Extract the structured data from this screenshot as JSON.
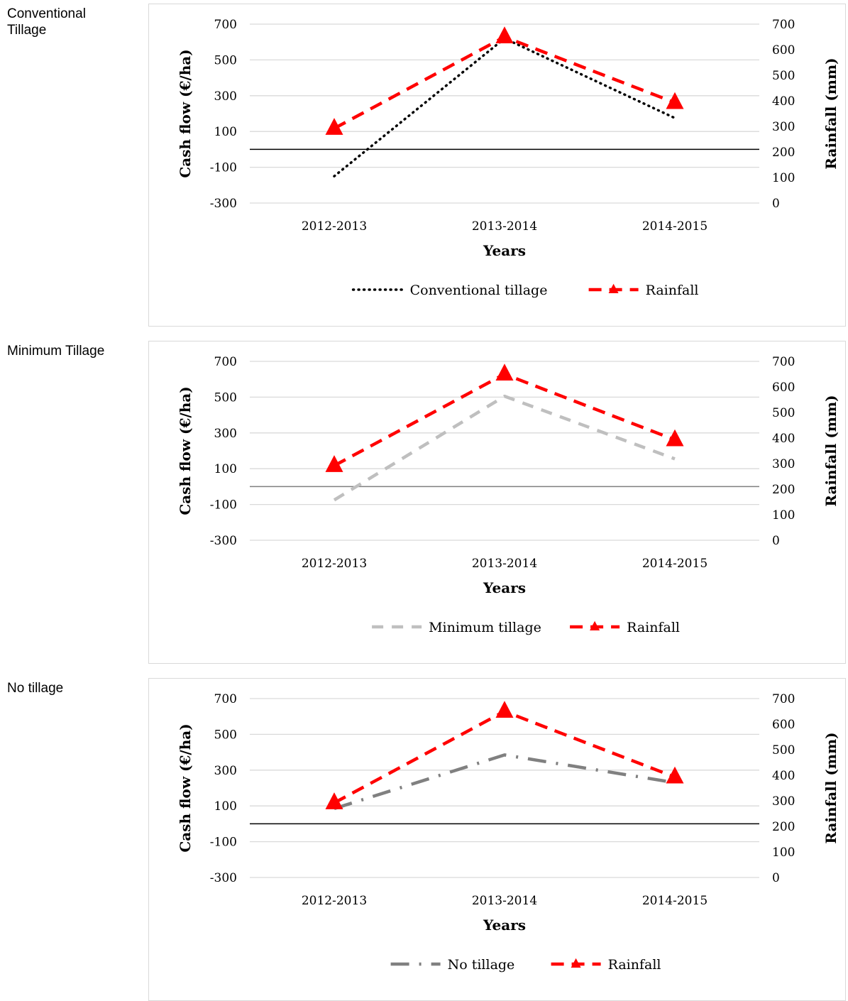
{
  "chart_data": [
    {
      "type": "line",
      "panel_label": "Conventional\nTillage",
      "categories": [
        "2012-2013",
        "2013-2014",
        "2014-2015"
      ],
      "xlabel": "Years",
      "ylabel": "Cash flow (€/ha)",
      "y2label": "Rainfall (mm)",
      "ylim": [
        -300,
        700
      ],
      "y2lim": [
        0,
        700
      ],
      "yticks": [
        "700",
        "500",
        "300",
        "100",
        "-100",
        "-300"
      ],
      "y2ticks": [
        "700",
        "600",
        "500",
        "400",
        "300",
        "200",
        "100",
        "0"
      ],
      "grid": true,
      "legend_position": "bottom",
      "series": [
        {
          "name": "Conventional tillage",
          "axis": "left",
          "style": "dotted",
          "color": "#000000",
          "values": [
            -150,
            620,
            175
          ]
        },
        {
          "name": "Rainfall",
          "axis": "right",
          "style": "dashed-triangle",
          "color": "#ff0000",
          "values": [
            292,
            650,
            393
          ]
        }
      ]
    },
    {
      "type": "line",
      "panel_label": "Minimum Tillage",
      "categories": [
        "2012-2013",
        "2013-2014",
        "2014-2015"
      ],
      "xlabel": "Years",
      "ylabel": "Cash flow (€/ha)",
      "y2label": "Rainfall (mm)",
      "ylim": [
        -300,
        700
      ],
      "y2lim": [
        0,
        700
      ],
      "yticks": [
        "700",
        "500",
        "300",
        "100",
        "-100",
        "-300"
      ],
      "y2ticks": [
        "700",
        "600",
        "500",
        "400",
        "300",
        "200",
        "100",
        "0"
      ],
      "grid": true,
      "legend_position": "bottom",
      "series": [
        {
          "name": "Minimum tillage",
          "axis": "left",
          "style": "dashed",
          "color": "#bfbfbf",
          "values": [
            -75,
            505,
            155
          ]
        },
        {
          "name": "Rainfall",
          "axis": "right",
          "style": "dashed-triangle",
          "color": "#ff0000",
          "values": [
            292,
            650,
            393
          ]
        }
      ]
    },
    {
      "type": "line",
      "panel_label": "No tillage",
      "categories": [
        "2012-2013",
        "2013-2014",
        "2014-2015"
      ],
      "xlabel": "Years",
      "ylabel": "Cash flow (€/ha)",
      "y2label": "Rainfall (mm)",
      "ylim": [
        -300,
        700
      ],
      "y2lim": [
        0,
        700
      ],
      "yticks": [
        "700",
        "500",
        "300",
        "100",
        "-100",
        "-300"
      ],
      "y2ticks": [
        "700",
        "600",
        "500",
        "400",
        "300",
        "200",
        "100",
        "0"
      ],
      "grid": true,
      "legend_position": "bottom",
      "series": [
        {
          "name": "No tillage",
          "axis": "left",
          "style": "dash-dot",
          "color": "#808080",
          "values": [
            85,
            385,
            230
          ]
        },
        {
          "name": "Rainfall",
          "axis": "right",
          "style": "dashed-triangle",
          "color": "#ff0000",
          "values": [
            292,
            650,
            393
          ]
        }
      ]
    }
  ]
}
